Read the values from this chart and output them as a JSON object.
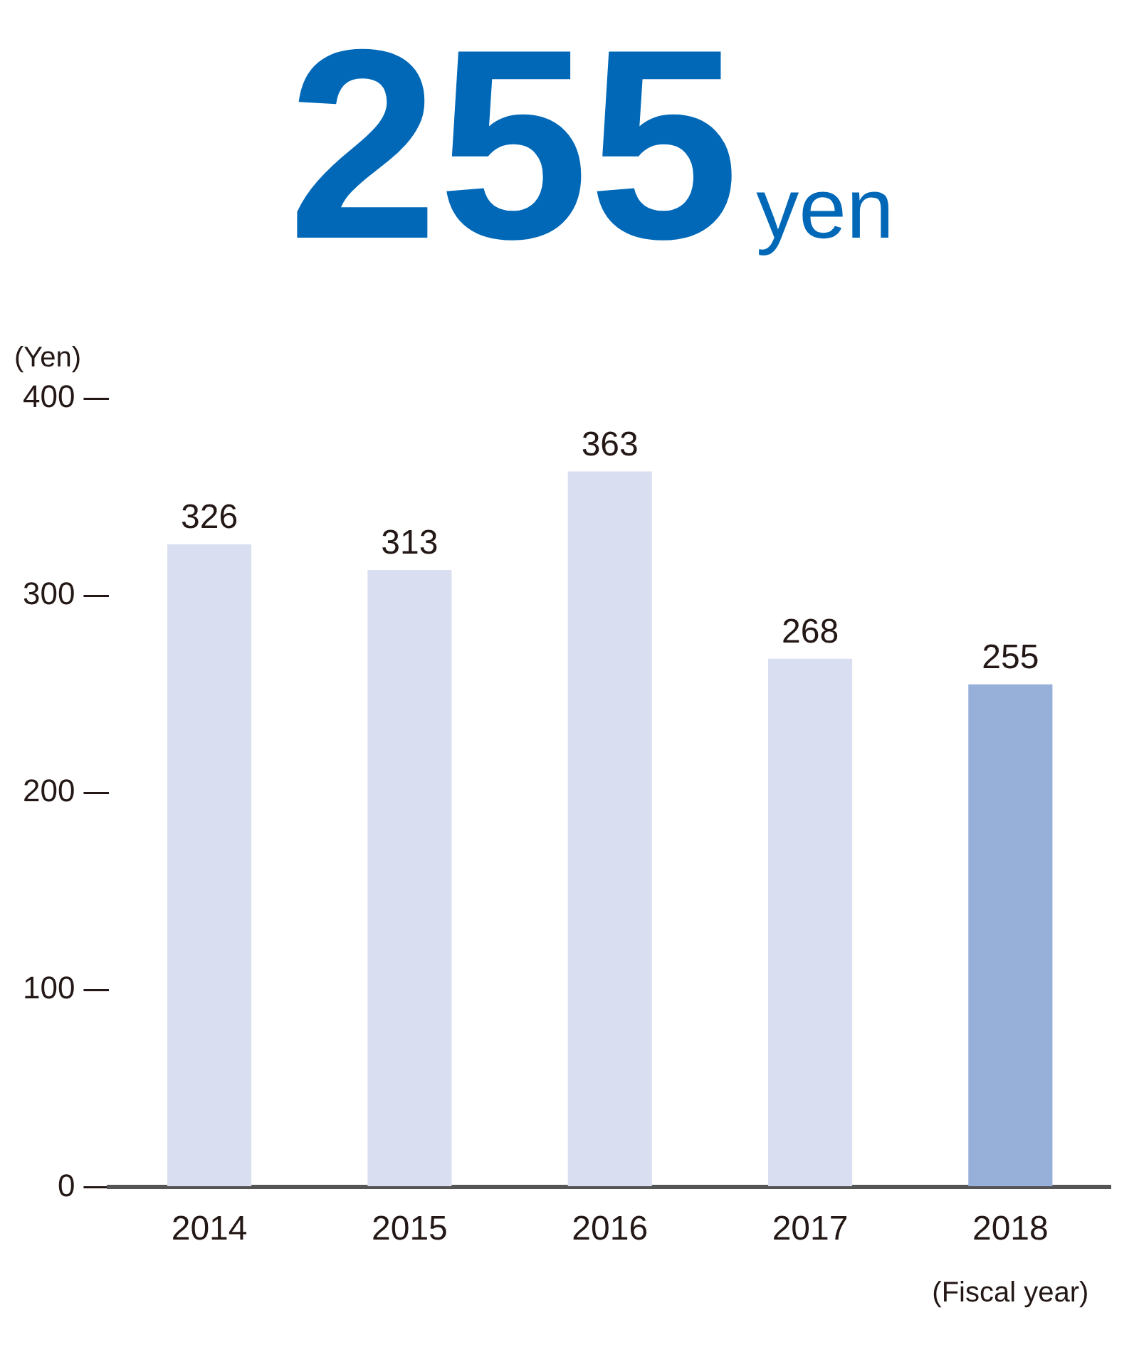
{
  "chart_data": {
    "type": "bar",
    "title": "255",
    "subtitle": "yen",
    "ylabel": "(Yen)",
    "xlabel": "(Fiscal year)",
    "categories": [
      "2014",
      "2015",
      "2016",
      "2017",
      "2018"
    ],
    "values": [
      326,
      313,
      363,
      268,
      255
    ],
    "colors": [
      "#d9dff0",
      "#d9dff0",
      "#d9dff0",
      "#d9dff0",
      "#97b0da"
    ],
    "ylim": [
      0,
      400
    ],
    "yticks": [
      0,
      100,
      200,
      300,
      400
    ],
    "grid": false,
    "legend": false,
    "data_labels": true
  }
}
